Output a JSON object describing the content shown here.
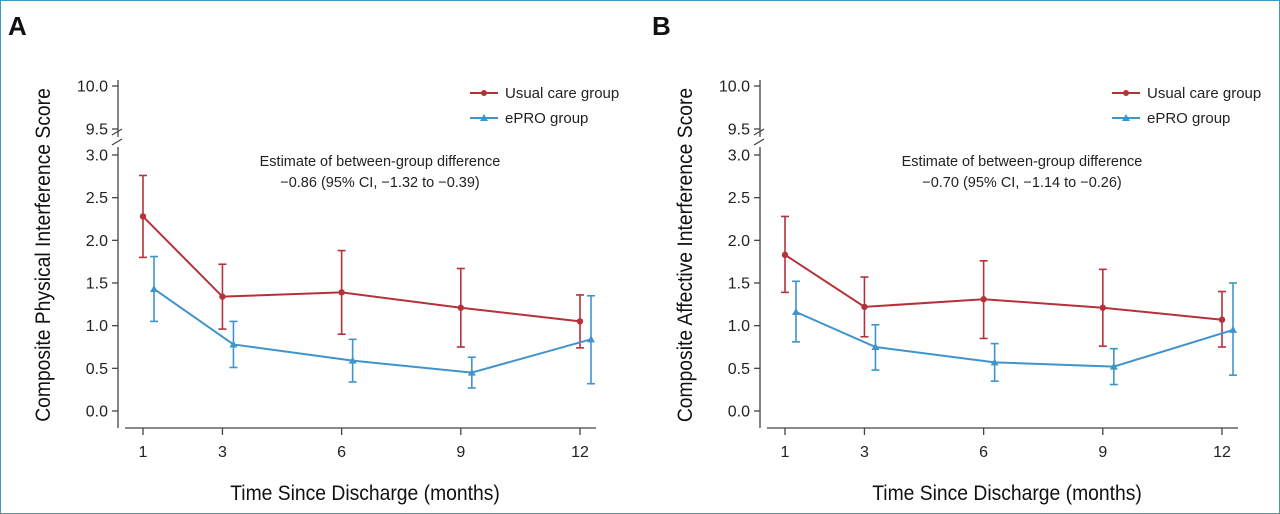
{
  "chart_data": [
    {
      "type": "line",
      "panel_label": "A",
      "title": "",
      "xlabel": "Time Since Discharge (months)",
      "ylabel": "Composite Physical Interference Score",
      "x_ticks": [
        "1",
        "3",
        "6",
        "9",
        "12"
      ],
      "y_ticks_lower": [
        "0.0",
        "0.5",
        "1.0",
        "1.5",
        "2.0",
        "2.5",
        "3.0"
      ],
      "y_ticks_upper": [
        "9.5",
        "10.0"
      ],
      "ylim_lower": [
        0,
        3.0
      ],
      "ylim_upper": [
        9.5,
        10.0
      ],
      "axis_break": true,
      "legend_position": "top-right",
      "annotation": {
        "line1": "Estimate of between-group difference",
        "line2": "−0.86 (95% CI, −1.32 to −0.39)"
      },
      "series": [
        {
          "name": "Usual care group",
          "color": "#b5323a",
          "marker": "circle",
          "x": [
            1,
            3,
            6,
            9,
            12
          ],
          "values": [
            2.28,
            1.34,
            1.39,
            1.21,
            1.05
          ],
          "ci_low": [
            1.8,
            0.96,
            0.9,
            0.75,
            0.74
          ],
          "ci_high": [
            2.76,
            1.72,
            1.88,
            1.67,
            1.36
          ]
        },
        {
          "name": "ePRO group",
          "color": "#3f94cd",
          "marker": "triangle",
          "x": [
            1,
            3,
            6,
            9,
            12
          ],
          "values": [
            1.43,
            0.78,
            0.59,
            0.45,
            0.84
          ],
          "ci_low": [
            1.05,
            0.51,
            0.34,
            0.27,
            0.32
          ],
          "ci_high": [
            1.81,
            1.05,
            0.84,
            0.63,
            1.35
          ]
        }
      ]
    },
    {
      "type": "line",
      "panel_label": "B",
      "title": "",
      "xlabel": "Time Since Discharge (months)",
      "ylabel": "Composite Affective Interference Score",
      "x_ticks": [
        "1",
        "3",
        "6",
        "9",
        "12"
      ],
      "y_ticks_lower": [
        "0.0",
        "0.5",
        "1.0",
        "1.5",
        "2.0",
        "2.5",
        "3.0"
      ],
      "y_ticks_upper": [
        "9.5",
        "10.0"
      ],
      "ylim_lower": [
        0,
        3.0
      ],
      "ylim_upper": [
        9.5,
        10.0
      ],
      "axis_break": true,
      "legend_position": "top-right",
      "annotation": {
        "line1": "Estimate of between-group difference",
        "line2": "−0.70 (95% CI, −1.14 to −0.26)"
      },
      "series": [
        {
          "name": "Usual care group",
          "color": "#b5323a",
          "marker": "circle",
          "x": [
            1,
            3,
            6,
            9,
            12
          ],
          "values": [
            1.83,
            1.22,
            1.31,
            1.21,
            1.07
          ],
          "ci_low": [
            1.39,
            0.87,
            0.85,
            0.76,
            0.75
          ],
          "ci_high": [
            2.28,
            1.57,
            1.76,
            1.66,
            1.4
          ]
        },
        {
          "name": "ePRO group",
          "color": "#3f94cd",
          "marker": "triangle",
          "x": [
            1,
            3,
            6,
            9,
            12
          ],
          "values": [
            1.16,
            0.75,
            0.57,
            0.52,
            0.95
          ],
          "ci_low": [
            0.81,
            0.48,
            0.35,
            0.31,
            0.42
          ],
          "ci_high": [
            1.52,
            1.01,
            0.79,
            0.73,
            1.5
          ]
        }
      ]
    }
  ]
}
